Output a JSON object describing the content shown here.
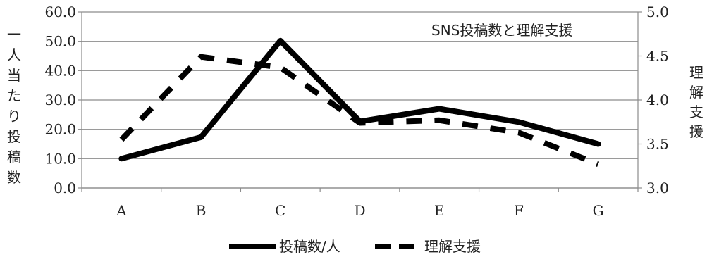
{
  "chart_data": {
    "type": "line",
    "title": "SNS投稿数と理解支援",
    "categories": [
      "A",
      "B",
      "C",
      "D",
      "E",
      "F",
      "G"
    ],
    "ylabel_left": "一人当たり投稿数",
    "ylabel_right": "理解支援",
    "ylim_left": [
      0,
      60
    ],
    "ylim_right": [
      3.0,
      5.0
    ],
    "yticks_left": [
      "0.0",
      "10.0",
      "20.0",
      "30.0",
      "40.0",
      "50.0",
      "60.0"
    ],
    "yticks_right": [
      "3.0",
      "3.5",
      "4.0",
      "4.5",
      "5.0"
    ],
    "grid": true,
    "legend_position": "bottom",
    "series": [
      {
        "name": "投稿数/人",
        "axis": "left",
        "style": "solid",
        "color": "#000000",
        "values": [
          10.0,
          17.3,
          50.2,
          22.7,
          27.0,
          22.5,
          15.0
        ]
      },
      {
        "name": "理解支援",
        "axis": "right",
        "style": "dashed",
        "color": "#000000",
        "values": [
          3.55,
          4.49,
          4.37,
          3.74,
          3.77,
          3.63,
          3.27
        ]
      }
    ]
  }
}
